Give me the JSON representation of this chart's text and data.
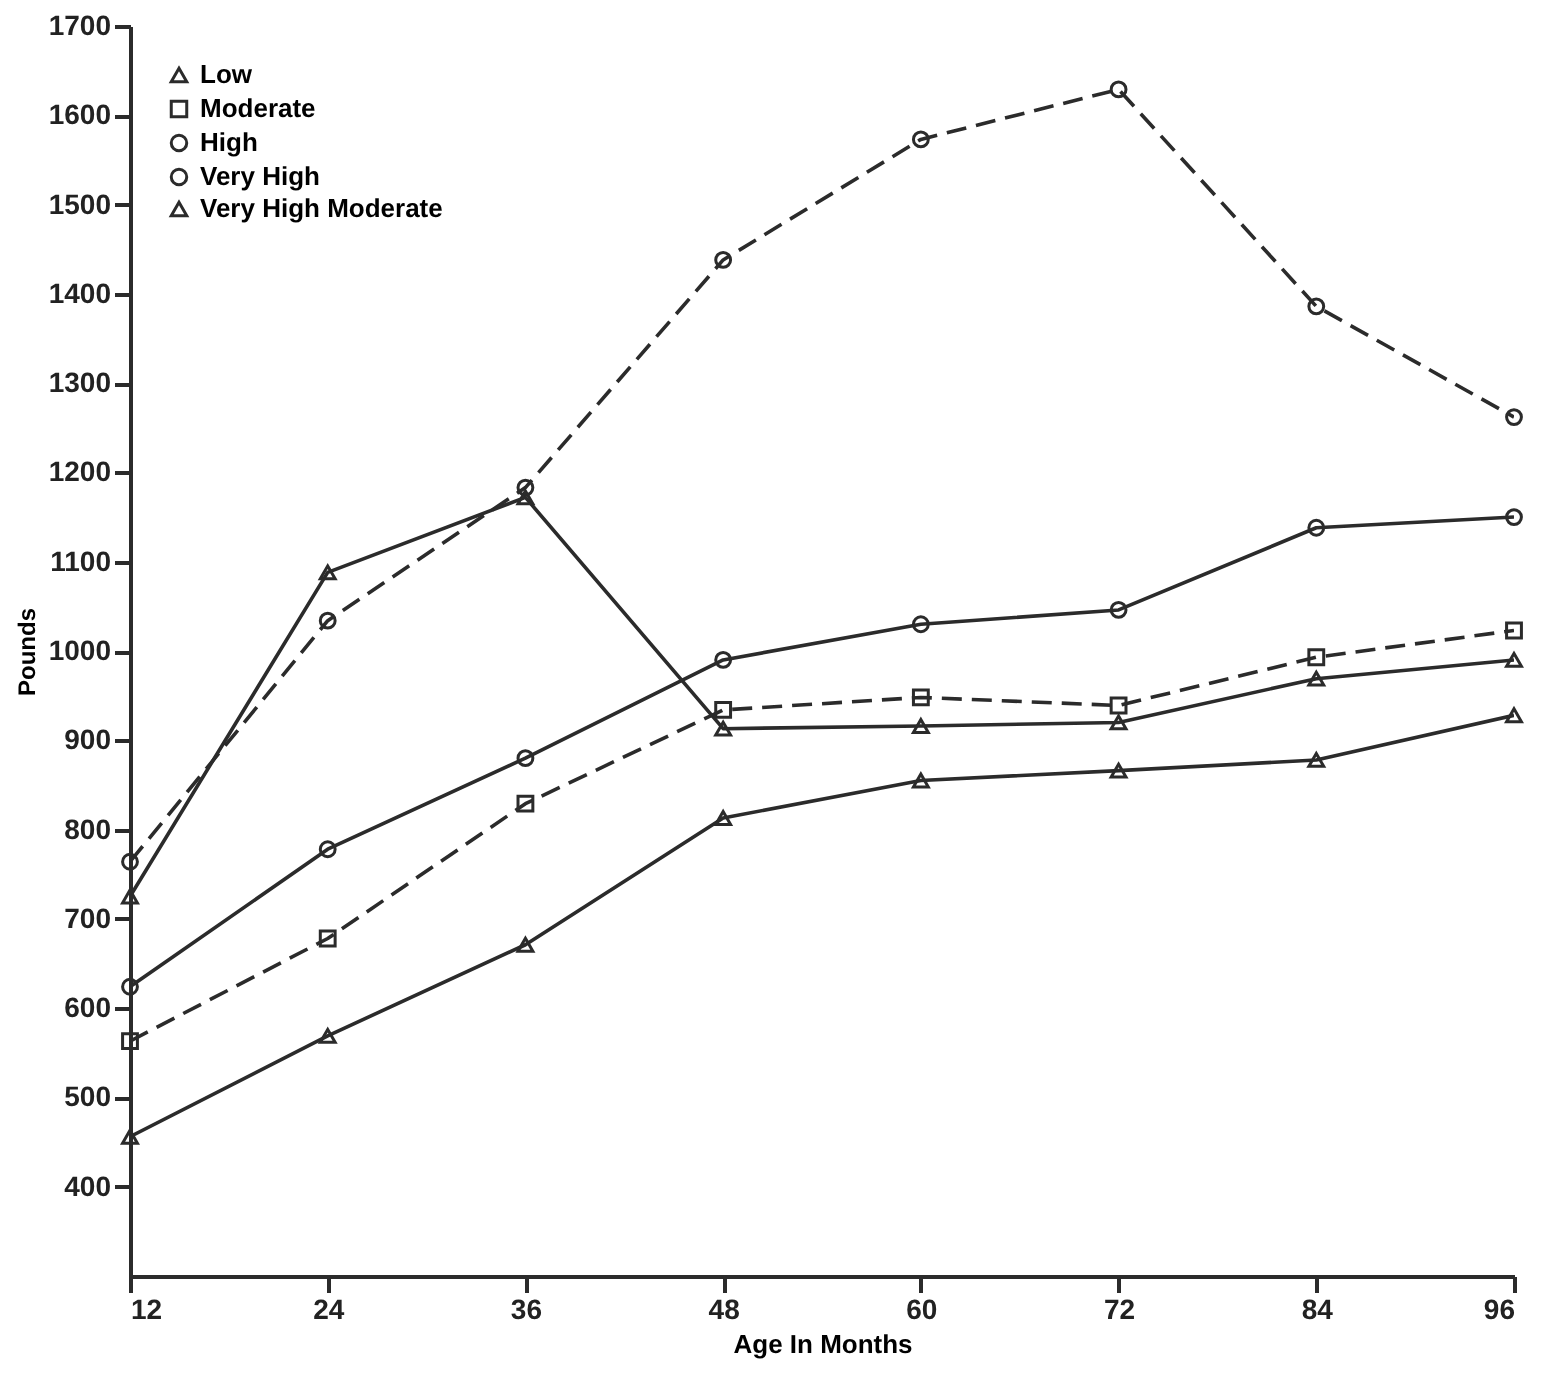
{
  "chart_data": {
    "type": "line",
    "xlabel": "Age In Months",
    "ylabel": "Pounds",
    "x": [
      12,
      24,
      36,
      48,
      60,
      72,
      84,
      96
    ],
    "xlim": [
      12,
      96
    ],
    "xticks": [
      12,
      24,
      36,
      48,
      60,
      72,
      84,
      96
    ],
    "ylim": [
      300,
      1700
    ],
    "yticks": [
      400,
      500,
      600,
      700,
      800,
      900,
      1000,
      1100,
      1200,
      1300,
      1400,
      1500,
      1600,
      1700
    ],
    "grid": false,
    "legend": "top left",
    "series": [
      {
        "name": "Low",
        "color": "#2b2b2b",
        "marker": "triangle",
        "line_style": "solid",
        "values": [
          456,
          569,
          671,
          813,
          855,
          866,
          878,
          928
        ]
      },
      {
        "name": "Moderate",
        "color": "#2b2b2b",
        "marker": "square",
        "line_style": "dashed",
        "values": [
          563,
          678,
          829,
          934,
          948,
          939,
          993,
          1023
        ]
      },
      {
        "name": "High",
        "color": "#2b2b2b",
        "marker": "circle",
        "line_style": "solid",
        "values": [
          624,
          778,
          880,
          990,
          1030,
          1046,
          1138,
          1150
        ]
      },
      {
        "name": "Very High",
        "color": "#2b2b2b",
        "marker": "circle",
        "line_style": "dashed",
        "values": [
          764,
          1034,
          1183,
          1438,
          1573,
          1629,
          1386,
          1262
        ]
      },
      {
        "name": "Very High Moderate",
        "color": "#2b2b2b",
        "marker": "triangle",
        "line_style": "solid",
        "values": [
          725,
          1088,
          1172,
          913,
          916,
          920,
          969,
          990
        ]
      }
    ]
  }
}
